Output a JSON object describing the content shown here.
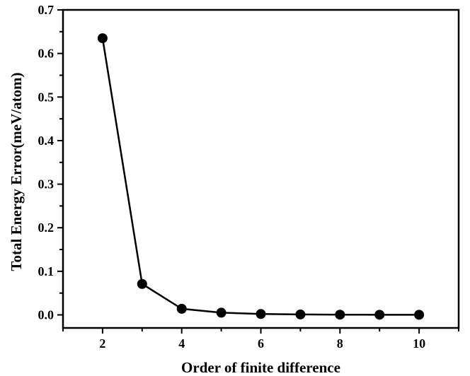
{
  "chart_data": {
    "type": "line",
    "title": "",
    "xlabel": "Order of finite difference",
    "ylabel": "Total Energy Error(meV/atom)",
    "xlim": [
      1,
      11
    ],
    "ylim": [
      -0.03,
      0.7
    ],
    "xticks": [
      "2",
      "4",
      "6",
      "8",
      "10"
    ],
    "xtick_values": [
      2,
      4,
      6,
      8,
      10
    ],
    "yticks": [
      "0.0",
      "0.1",
      "0.2",
      "0.3",
      "0.4",
      "0.5",
      "0.6",
      "0.7"
    ],
    "ytick_values": [
      0.0,
      0.1,
      0.2,
      0.3,
      0.4,
      0.5,
      0.6,
      0.7
    ],
    "grid": false,
    "legend": "none",
    "series": [
      {
        "x": [
          2,
          3,
          4,
          5,
          6,
          7,
          8,
          9,
          10
        ],
        "y": [
          0.635,
          0.071,
          0.014,
          0.005,
          0.002,
          0.001,
          0.0005,
          0.0003,
          0.0002
        ],
        "marker": "circle",
        "color": "#000000"
      }
    ]
  }
}
